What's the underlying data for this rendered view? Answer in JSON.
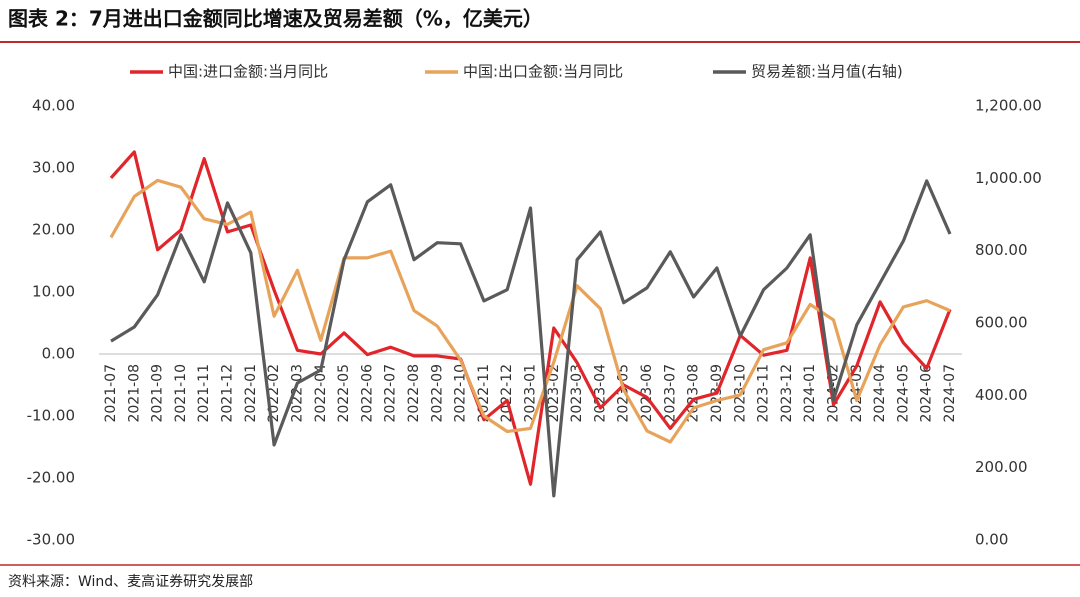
{
  "chart_data": {
    "type": "line",
    "title": "图表 2：7月进出口金额同比增速及贸易差额（%，亿美元）",
    "source": "资料来源：Wind、麦高证券研究发展部",
    "categories": [
      "2021-07",
      "2021-08",
      "2021-09",
      "2021-10",
      "2021-11",
      "2021-12",
      "2022-01",
      "2022-02",
      "2022-03",
      "2022-04",
      "2022-05",
      "2022-06",
      "2022-07",
      "2022-08",
      "2022-09",
      "2022-10",
      "2022-11",
      "2022-12",
      "2023-01",
      "2023-02",
      "2023-03",
      "2023-04",
      "2023-05",
      "2023-06",
      "2023-07",
      "2023-08",
      "2023-09",
      "2023-10",
      "2023-11",
      "2023-12",
      "2024-01",
      "2024-02",
      "2024-03",
      "2024-04",
      "2024-05",
      "2024-06",
      "2024-07"
    ],
    "series": [
      {
        "name": "中国:进口金额:当月同比",
        "color": "#e0262b",
        "values": [
          28.4,
          32.6,
          16.8,
          20.0,
          31.5,
          19.7,
          20.8,
          10.3,
          0.6,
          0.0,
          3.4,
          -0.1,
          1.1,
          -0.3,
          -0.3,
          -0.8,
          -10.6,
          -7.5,
          -21.0,
          4.2,
          -1.4,
          -8.7,
          -5.0,
          -7.0,
          -12.0,
          -7.3,
          -6.3,
          3.0,
          -0.2,
          0.6,
          15.5,
          -8.2,
          -1.9,
          8.4,
          1.8,
          -2.3,
          7.2
        ]
      },
      {
        "name": "中国:出口金额:当月同比",
        "color": "#e8a35a",
        "values": [
          18.8,
          25.4,
          28.0,
          26.9,
          21.8,
          20.9,
          22.9,
          6.1,
          13.5,
          2.2,
          15.5,
          15.5,
          16.6,
          7.0,
          4.5,
          -1.0,
          -10.0,
          -12.5,
          -12.0,
          -1.3,
          11.0,
          7.3,
          -5.8,
          -12.4,
          -14.2,
          -8.7,
          -7.5,
          -6.6,
          0.7,
          1.8,
          8.0,
          5.5,
          -7.5,
          1.5,
          7.6,
          8.6,
          7.0
        ]
      },
      {
        "name": "贸易差额:当月值(右轴)",
        "color": "#5a5a5a",
        "axis": "y2",
        "values": [
          550,
          589,
          678,
          844,
          714,
          932,
          794,
          263,
          434,
          470,
          775,
          935,
          982,
          775,
          822,
          819,
          661,
          692,
          918,
          122,
          775,
          852,
          656,
          697,
          797,
          672,
          752,
          564,
          692,
          752,
          844,
          387,
          595,
          711,
          827,
          993,
          846
        ]
      }
    ],
    "ylim": [
      -30,
      40
    ],
    "yticks": [
      {
        "value": -30,
        "label": "-30.00"
      },
      {
        "value": -20,
        "label": "-20.00"
      },
      {
        "value": -10,
        "label": "-10.00"
      },
      {
        "value": 0,
        "label": "0.00"
      },
      {
        "value": 10,
        "label": "10.00"
      },
      {
        "value": 20,
        "label": "20.00"
      },
      {
        "value": 30,
        "label": "30.00"
      },
      {
        "value": 40,
        "label": "40.00"
      }
    ],
    "y2lim": [
      0,
      1200
    ],
    "y2ticks": [
      {
        "value": 0,
        "label": "0.00"
      },
      {
        "value": 200,
        "label": "200.00"
      },
      {
        "value": 400,
        "label": "400.00"
      },
      {
        "value": 600,
        "label": "600.00"
      },
      {
        "value": 800,
        "label": "800.00"
      },
      {
        "value": 1000,
        "label": "1,000.00"
      },
      {
        "value": 1200,
        "label": "1,200.00"
      }
    ]
  }
}
